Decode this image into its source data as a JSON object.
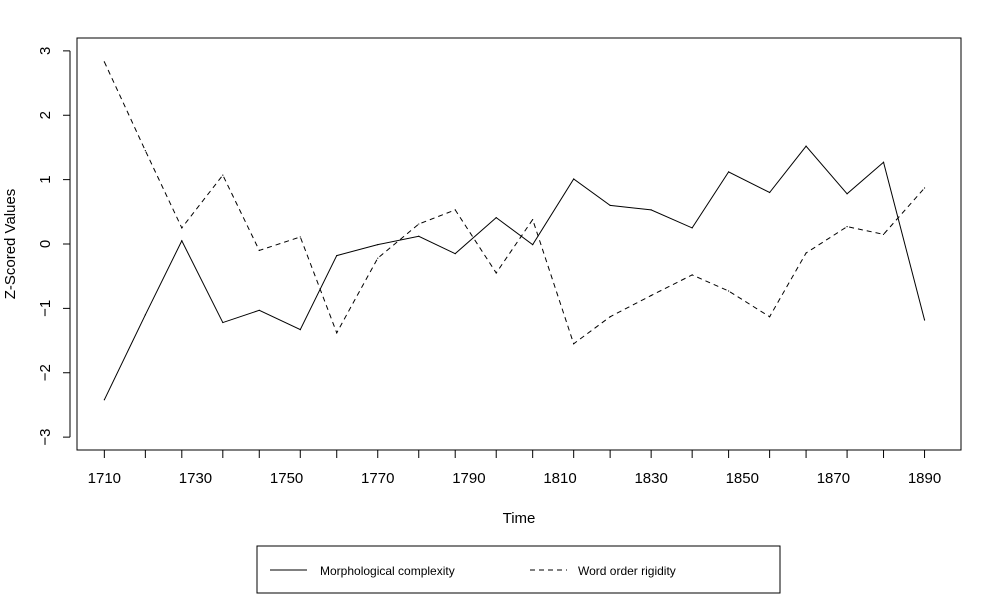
{
  "chart_data": {
    "type": "line",
    "xlabel": "Time",
    "ylabel": "Z-Scored Values",
    "xlim": [
      1704,
      1898
    ],
    "ylim": [
      -3.2,
      3.2
    ],
    "x_ticks": [
      1710,
      1730,
      1750,
      1770,
      1790,
      1810,
      1830,
      1850,
      1870,
      1890
    ],
    "y_ticks": [
      -3,
      -2,
      -1,
      0,
      1,
      2,
      3
    ],
    "y_tick_labels": [
      "−3",
      "−2",
      "−1",
      "0",
      "1",
      "2",
      "3"
    ],
    "grid": false,
    "legend_position": "bottom",
    "x": [
      1710,
      1719,
      1727,
      1736,
      1744,
      1753,
      1761,
      1770,
      1779,
      1787,
      1796,
      1804,
      1813,
      1821,
      1830,
      1839,
      1847,
      1856,
      1864,
      1873,
      1881,
      1890
    ],
    "series": [
      {
        "name": "Morphological complexity",
        "line_style": "solid",
        "values": [
          -2.42,
          -1.1,
          0.05,
          -1.22,
          -1.03,
          -1.33,
          -0.18,
          -0.01,
          0.12,
          -0.15,
          0.41,
          -0.01,
          1.01,
          0.6,
          0.53,
          0.25,
          1.12,
          0.8,
          1.52,
          0.78,
          1.27,
          -1.18
        ]
      },
      {
        "name": "Word order rigidity",
        "line_style": "dashed",
        "values": [
          2.83,
          1.45,
          0.25,
          1.07,
          -0.1,
          0.11,
          -1.38,
          -0.22,
          0.31,
          0.53,
          -0.45,
          0.38,
          -1.55,
          -1.13,
          -0.8,
          -0.48,
          -0.73,
          -1.13,
          -0.14,
          0.27,
          0.15,
          0.87
        ]
      }
    ]
  }
}
